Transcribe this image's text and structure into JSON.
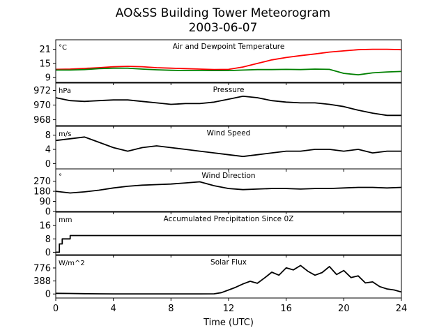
{
  "figure": {
    "title_line1": "AO&SS Building Tower Meteorogram",
    "title_line2": "2003-06-07",
    "xlabel": "Time (UTC)"
  },
  "chart_data": {
    "type": "line",
    "xlim": [
      0,
      24
    ],
    "xticks": [
      0,
      4,
      8,
      12,
      16,
      20,
      24
    ],
    "panels": [
      {
        "key": "temp",
        "title": "Air and Dewpoint Temperature",
        "unit": "°C",
        "ylim": [
          7,
          25
        ],
        "yticks": [
          9,
          15,
          21
        ],
        "series": [
          {
            "color": "#ff0000",
            "x": [
              0,
              1,
              2,
              3,
              4,
              5,
              6,
              7,
              8,
              9,
              10,
              11,
              12,
              13,
              14,
              15,
              16,
              17,
              18,
              19,
              20,
              21,
              22,
              23,
              24
            ],
            "y": [
              12.5,
              12.6,
              12.9,
              13.2,
              13.6,
              13.8,
              13.6,
              13.2,
              13.0,
              12.8,
              12.6,
              12.4,
              12.5,
              13.5,
              15.0,
              16.5,
              17.5,
              18.3,
              19.0,
              19.8,
              20.3,
              20.8,
              21.0,
              21.0,
              20.8
            ]
          },
          {
            "color": "#008000",
            "x": [
              0,
              1,
              2,
              3,
              4,
              5,
              6,
              7,
              8,
              9,
              10,
              11,
              12,
              13,
              14,
              15,
              16,
              17,
              18,
              19,
              20,
              21,
              22,
              23,
              24
            ],
            "y": [
              12.2,
              12.2,
              12.4,
              12.8,
              13.0,
              13.0,
              12.6,
              12.3,
              12.1,
              12.0,
              12.0,
              12.0,
              12.0,
              12.2,
              12.4,
              12.4,
              12.5,
              12.4,
              12.6,
              12.5,
              10.8,
              10.2,
              11.0,
              11.4,
              11.6
            ]
          }
        ]
      },
      {
        "key": "pressure",
        "title": "Pressure",
        "unit": "hPa",
        "ylim": [
          967.2,
          973.0
        ],
        "yticks": [
          968,
          970,
          972
        ],
        "series": [
          {
            "color": "#000000",
            "x": [
              0,
              1,
              2,
              3,
              4,
              5,
              6,
              7,
              8,
              9,
              10,
              11,
              12,
              13,
              14,
              15,
              16,
              17,
              18,
              19,
              20,
              21,
              22,
              23,
              24
            ],
            "y": [
              971.0,
              970.6,
              970.5,
              970.6,
              970.7,
              970.7,
              970.5,
              970.3,
              970.1,
              970.2,
              970.2,
              970.4,
              970.8,
              971.2,
              971.0,
              970.6,
              970.4,
              970.3,
              970.3,
              970.1,
              969.8,
              969.3,
              968.9,
              968.6,
              968.6
            ]
          }
        ]
      },
      {
        "key": "windspeed",
        "title": "Wind Speed",
        "unit": "m/s",
        "ylim": [
          -1.5,
          10.5
        ],
        "yticks": [
          0,
          4,
          8
        ],
        "series": [
          {
            "color": "#000000",
            "x": [
              0,
              1,
              2,
              3,
              4,
              5,
              6,
              7,
              8,
              9,
              10,
              11,
              12,
              13,
              14,
              15,
              16,
              17,
              18,
              19,
              20,
              21,
              22,
              23,
              24
            ],
            "y": [
              6.5,
              7.0,
              7.5,
              6.0,
              4.5,
              3.5,
              4.5,
              5.0,
              4.5,
              4.0,
              3.5,
              3.0,
              2.5,
              2.0,
              2.5,
              3.0,
              3.5,
              3.5,
              4.0,
              4.0,
              3.5,
              4.0,
              3.0,
              3.5,
              3.5
            ]
          }
        ]
      },
      {
        "key": "winddir",
        "title": "Wind Direction",
        "unit": "°",
        "ylim": [
          0,
          380
        ],
        "yticks": [
          0,
          90,
          180,
          270
        ],
        "series": [
          {
            "color": "#000000",
            "x": [
              0,
              1,
              2,
              3,
              4,
              5,
              6,
              7,
              8,
              9,
              10,
              11,
              12,
              13,
              14,
              15,
              16,
              17,
              18,
              19,
              20,
              21,
              22,
              23,
              24
            ],
            "y": [
              180,
              165,
              175,
              190,
              210,
              225,
              235,
              240,
              245,
              255,
              265,
              230,
              205,
              195,
              200,
              205,
              205,
              200,
              205,
              205,
              210,
              215,
              215,
              210,
              215
            ]
          }
        ]
      },
      {
        "key": "precip",
        "title": "Accumulated Precipitation Since 0Z",
        "unit": "mm",
        "ylim": [
          -1.5,
          24
        ],
        "yticks": [
          0,
          8,
          16
        ],
        "series": [
          {
            "color": "#000000",
            "x": [
              0,
              0.25,
              0.25,
              0.45,
              0.45,
              1.0,
              1.0,
              24
            ],
            "y": [
              0,
              0,
              5,
              5,
              8,
              8,
              10,
              10
            ]
          }
        ]
      },
      {
        "key": "solar",
        "title": "Solar Flux",
        "unit": "W/m^2",
        "ylim": [
          -120,
          1150
        ],
        "yticks": [
          0,
          388,
          776
        ],
        "series": [
          {
            "color": "#000000",
            "x": [
              0,
              1,
              2,
              3,
              4,
              5,
              6,
              7,
              8,
              9,
              10,
              11,
              11.5,
              12,
              12.5,
              13,
              13.5,
              14,
              14.5,
              15,
              15.5,
              16,
              16.5,
              17,
              17.5,
              18,
              18.5,
              19,
              19.5,
              20,
              20.5,
              21,
              21.5,
              22,
              22.5,
              23,
              23.5,
              24
            ],
            "y": [
              20,
              15,
              10,
              5,
              3,
              2,
              2,
              2,
              2,
              2,
              2,
              5,
              40,
              120,
              200,
              300,
              380,
              320,
              480,
              650,
              560,
              780,
              720,
              850,
              680,
              560,
              640,
              820,
              580,
              700,
              490,
              540,
              330,
              360,
              220,
              150,
              120,
              60
            ]
          }
        ]
      }
    ]
  }
}
